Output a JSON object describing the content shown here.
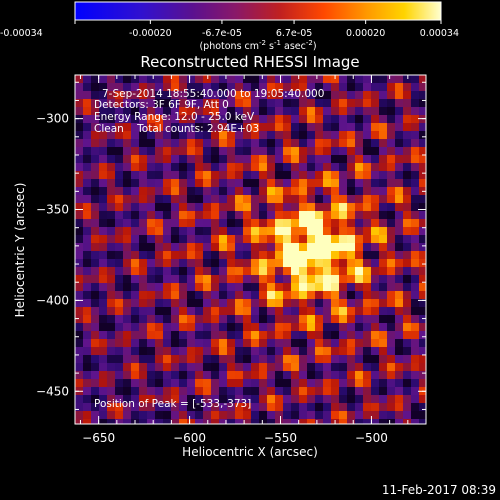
{
  "chart_data": {
    "type": "heatmap",
    "title": "Reconstructed RHESSI Image",
    "xlabel": "Heliocentric X (arcsec)",
    "ylabel": "Heliocentric Y (arcsec)",
    "xlim": [
      -663,
      -470
    ],
    "ylim": [
      -468,
      -276
    ],
    "xticks": [
      -650,
      -600,
      -550,
      -500
    ],
    "yticks": [
      -300,
      -350,
      -400,
      -450
    ],
    "grid": false,
    "peak": [
      -533,
      -373
    ],
    "colorbar": {
      "min": -0.00034,
      "max": 0.00034,
      "ticks": [
        -0.00034,
        -0.0002,
        -6.7e-05,
        6.7e-05,
        0.0002,
        0.00034
      ],
      "tick_labels": [
        "-0.00034",
        "-0.00020",
        "-6.7e-05",
        "6.7e-05",
        "0.00020",
        "0.00034"
      ],
      "unit_base": "(photons cm",
      "unit_exp1": "-2",
      "unit_mid": " s",
      "unit_exp2": "-1",
      "unit_mid2": " asec",
      "unit_exp3": "-2",
      "unit_end": ")"
    },
    "annotations": {
      "time": "7-Sep-2014 18:55:40.000 to 19:05:40.000",
      "detectors": "Detectors: 3F 6F 9F, Att 0",
      "energy": "Energy Range: 12.0 - 25.0 keV",
      "method": "Clean    Total counts: 2.94E+03",
      "peak_label": "Position of Peak = [-533,-373]"
    }
  },
  "footer": {
    "date": "11-Feb-2017 08:39"
  }
}
